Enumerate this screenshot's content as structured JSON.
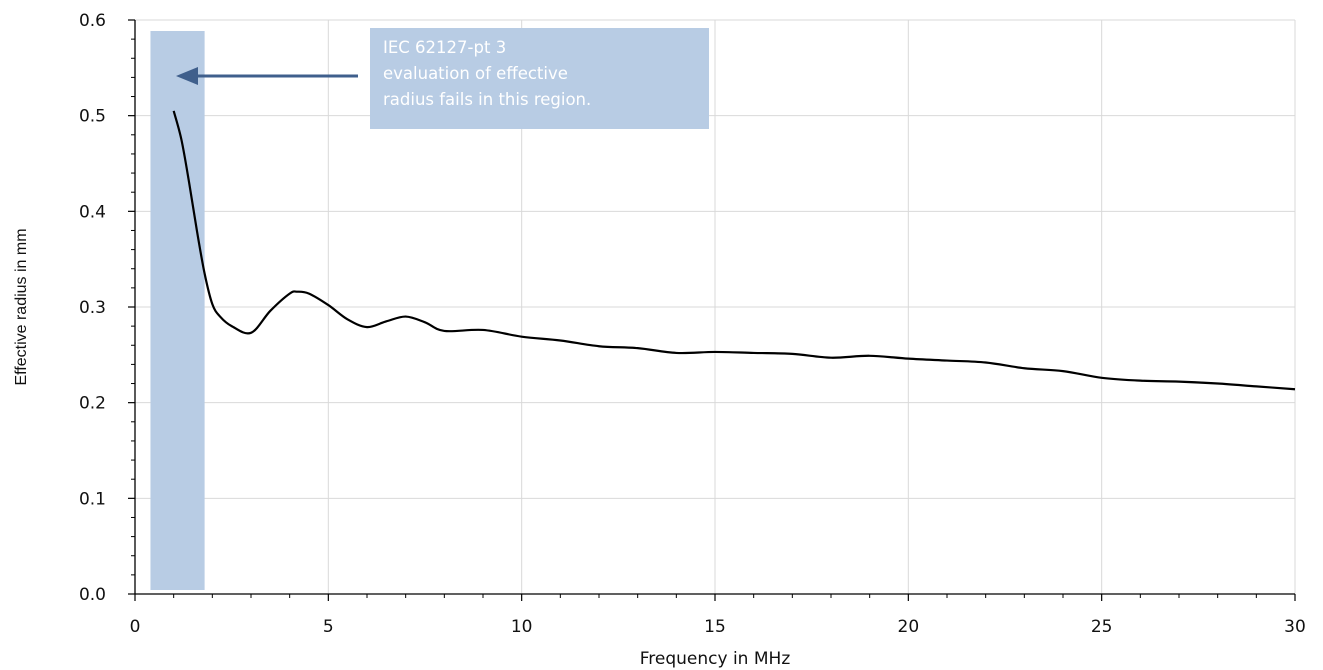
{
  "chart_data": {
    "type": "line",
    "title": "",
    "xlabel": "Frequency in MHz",
    "ylabel": "Effective radius in mm",
    "xlim": [
      0,
      30
    ],
    "ylim": [
      0,
      0.6
    ],
    "x_ticks": [
      "0",
      "5",
      "10",
      "15",
      "20",
      "25",
      "30"
    ],
    "y_ticks": [
      "0.0",
      "0.1",
      "0.2",
      "0.3",
      "0.4",
      "0.5",
      "0.6"
    ],
    "grid": true,
    "legend": "none",
    "highlight_region": {
      "x_start": 0.4,
      "x_end": 1.8,
      "color": "#b8cce4"
    },
    "annotation": {
      "lines": [
        "IEC 62127-pt 3",
        "evaluation  of effective",
        "radius fails in this region."
      ],
      "box_color": "#b8cce4",
      "arrow_color": "#3f5f8c"
    },
    "series": [
      {
        "color": "#000000",
        "x": [
          1,
          1.2,
          1.4,
          1.6,
          1.8,
          2,
          2.2,
          2.5,
          3,
          3.5,
          4,
          4.2,
          4.5,
          5,
          5.5,
          6,
          6.5,
          7,
          7.5,
          8,
          9,
          10,
          11,
          12,
          13,
          14,
          15,
          16,
          17,
          18,
          19,
          20,
          21,
          22,
          23,
          24,
          25,
          26,
          27,
          28,
          29,
          30
        ],
        "y": [
          0.505,
          0.475,
          0.43,
          0.38,
          0.335,
          0.303,
          0.29,
          0.28,
          0.273,
          0.296,
          0.314,
          0.316,
          0.314,
          0.302,
          0.287,
          0.279,
          0.285,
          0.29,
          0.284,
          0.275,
          0.276,
          0.269,
          0.265,
          0.259,
          0.257,
          0.252,
          0.253,
          0.252,
          0.251,
          0.247,
          0.249,
          0.246,
          0.244,
          0.242,
          0.236,
          0.233,
          0.226,
          0.223,
          0.222,
          0.22,
          0.217,
          0.214
        ]
      }
    ]
  }
}
